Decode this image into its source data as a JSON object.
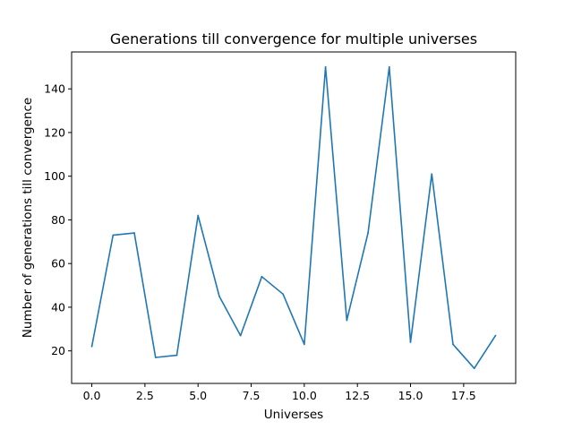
{
  "chart_data": {
    "type": "line",
    "title": "Generations till convergence for multiple universes",
    "xlabel": "Universes",
    "ylabel": "Number of generations till convergence",
    "x": [
      0,
      1,
      2,
      3,
      4,
      5,
      6,
      7,
      8,
      9,
      10,
      11,
      12,
      13,
      14,
      15,
      16,
      17,
      18,
      19
    ],
    "series": [
      {
        "values": [
          22,
          73,
          74,
          17,
          18,
          82,
          45,
          27,
          54,
          46,
          23,
          150,
          34,
          74,
          150,
          24,
          101,
          23,
          12,
          27
        ],
        "color": "#1f77b4"
      }
    ],
    "xlim": [
      -0.95,
      19.95
    ],
    "ylim": [
      5.1,
      156.9
    ],
    "xticks": [
      0.0,
      2.5,
      5.0,
      7.5,
      10.0,
      12.5,
      15.0,
      17.5
    ],
    "xtick_labels": [
      "0.0",
      "2.5",
      "5.0",
      "7.5",
      "10.0",
      "12.5",
      "15.0",
      "17.5"
    ],
    "yticks": [
      20,
      40,
      60,
      80,
      100,
      120,
      140
    ],
    "ytick_labels": [
      "20",
      "40",
      "60",
      "80",
      "100",
      "120",
      "140"
    ],
    "grid": false,
    "legend": "none"
  }
}
